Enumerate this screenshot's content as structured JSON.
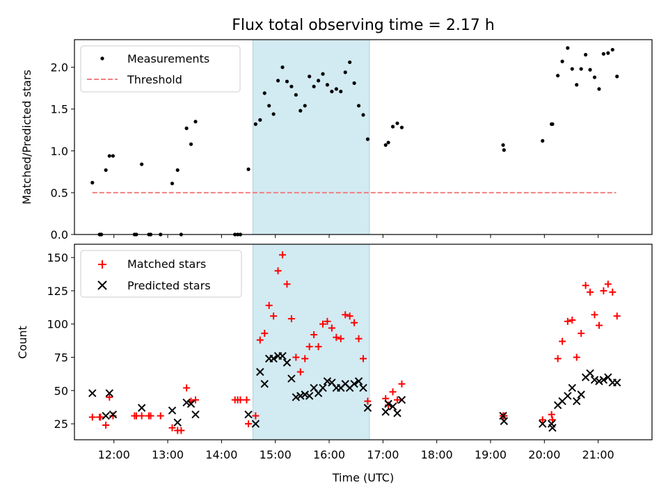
{
  "title": "Flux total observing time = 2.17 h",
  "colors": {
    "measurement": "#000000",
    "threshold": "#f08080",
    "matched": "#ff0000",
    "predicted": "#000000",
    "shade": "#add8e6"
  },
  "chart_data": [
    {
      "type": "scatter",
      "ylabel": "Matched/Predicted stars",
      "ylim": [
        0,
        2.33
      ],
      "xlim": [
        "11:16",
        "22:00"
      ],
      "yticks": [
        "0.0",
        "0.5",
        "1.0",
        "1.5",
        "2.0"
      ],
      "yticks_values": [
        0,
        0.5,
        1.0,
        1.5,
        2.0
      ],
      "shaded_interval": [
        "14:35",
        "16:45"
      ],
      "legend": {
        "position": "top-left",
        "entries": [
          "Measurements",
          "Threshold"
        ]
      },
      "threshold": {
        "name": "Threshold",
        "value": 0.5,
        "x": [
          "11:36",
          "21:20"
        ]
      },
      "series": [
        {
          "name": "Measurements",
          "points": [
            [
              "11:36",
              0.62
            ],
            [
              "11:44",
              0.0
            ],
            [
              "11:45",
              0.0
            ],
            [
              "11:46",
              0.0
            ],
            [
              "11:51",
              0.77
            ],
            [
              "11:55",
              0.94
            ],
            [
              "11:59",
              0.94
            ],
            [
              "12:23",
              0.0
            ],
            [
              "12:25",
              0.0
            ],
            [
              "12:31",
              0.84
            ],
            [
              "12:39",
              0.0
            ],
            [
              "12:41",
              0.0
            ],
            [
              "12:52",
              0.0
            ],
            [
              "13:05",
              0.61
            ],
            [
              "13:11",
              0.77
            ],
            [
              "13:15",
              0.0
            ],
            [
              "13:21",
              1.27
            ],
            [
              "13:26",
              1.08
            ],
            [
              "13:31",
              1.35
            ],
            [
              "14:15",
              0.0
            ],
            [
              "14:18",
              0.0
            ],
            [
              "14:21",
              0.0
            ],
            [
              "14:30",
              0.78
            ],
            [
              "14:38",
              1.32
            ],
            [
              "14:43",
              1.37
            ],
            [
              "14:48",
              1.69
            ],
            [
              "14:53",
              1.54
            ],
            [
              "14:58",
              1.44
            ],
            [
              "15:03",
              1.84
            ],
            [
              "15:08",
              2.0
            ],
            [
              "15:13",
              1.83
            ],
            [
              "15:18",
              1.77
            ],
            [
              "15:23",
              1.67
            ],
            [
              "15:28",
              1.48
            ],
            [
              "15:33",
              1.54
            ],
            [
              "15:38",
              1.89
            ],
            [
              "15:43",
              1.77
            ],
            [
              "15:48",
              1.84
            ],
            [
              "15:53",
              1.92
            ],
            [
              "15:58",
              1.79
            ],
            [
              "16:03",
              1.71
            ],
            [
              "16:08",
              1.74
            ],
            [
              "16:13",
              1.71
            ],
            [
              "16:18",
              1.94
            ],
            [
              "16:23",
              2.06
            ],
            [
              "16:28",
              1.81
            ],
            [
              "16:33",
              1.54
            ],
            [
              "16:38",
              1.43
            ],
            [
              "16:43",
              1.14
            ],
            [
              "17:03",
              1.07
            ],
            [
              "17:06",
              1.1
            ],
            [
              "17:11",
              1.29
            ],
            [
              "17:16",
              1.33
            ],
            [
              "17:21",
              1.28
            ],
            [
              "19:14",
              1.07
            ],
            [
              "19:15",
              1.01
            ],
            [
              "19:58",
              1.12
            ],
            [
              "20:08",
              1.32
            ],
            [
              "20:09",
              1.32
            ],
            [
              "20:15",
              1.9
            ],
            [
              "20:20",
              2.07
            ],
            [
              "20:26",
              2.23
            ],
            [
              "20:31",
              1.98
            ],
            [
              "20:36",
              1.79
            ],
            [
              "20:41",
              1.98
            ],
            [
              "20:46",
              2.15
            ],
            [
              "20:51",
              1.97
            ],
            [
              "20:56",
              1.88
            ],
            [
              "21:01",
              1.74
            ],
            [
              "21:06",
              2.16
            ],
            [
              "21:11",
              2.17
            ],
            [
              "21:16",
              2.21
            ],
            [
              "21:21",
              1.89
            ]
          ]
        }
      ]
    },
    {
      "type": "scatter",
      "xlabel": "Time (UTC)",
      "ylabel": "Count",
      "ylim": [
        13,
        160
      ],
      "xlim": [
        "11:16",
        "22:00"
      ],
      "xticks": [
        "12:00",
        "13:00",
        "14:00",
        "15:00",
        "16:00",
        "17:00",
        "18:00",
        "19:00",
        "20:00",
        "21:00"
      ],
      "yticks": [
        "25",
        "50",
        "75",
        "100",
        "125",
        "150"
      ],
      "yticks_values": [
        25,
        50,
        75,
        100,
        125,
        150
      ],
      "shaded_interval": [
        "14:35",
        "16:45"
      ],
      "legend": {
        "position": "top-left",
        "entries": [
          "Matched stars",
          "Predicted stars"
        ]
      },
      "series": [
        {
          "name": "Matched stars",
          "points": [
            [
              "11:36",
              30
            ],
            [
              "11:44",
              30
            ],
            [
              "11:45",
              30
            ],
            [
              "11:51",
              24
            ],
            [
              "11:55",
              45
            ],
            [
              "11:59",
              31
            ],
            [
              "12:23",
              31
            ],
            [
              "12:25",
              31
            ],
            [
              "12:31",
              31
            ],
            [
              "12:39",
              31
            ],
            [
              "12:41",
              31
            ],
            [
              "12:52",
              31
            ],
            [
              "13:05",
              22
            ],
            [
              "13:11",
              20
            ],
            [
              "13:15",
              20
            ],
            [
              "13:21",
              52
            ],
            [
              "13:26",
              42
            ],
            [
              "13:31",
              43
            ],
            [
              "14:15",
              43
            ],
            [
              "14:18",
              43
            ],
            [
              "14:21",
              43
            ],
            [
              "14:28",
              43
            ],
            [
              "14:30",
              25
            ],
            [
              "14:38",
              31
            ],
            [
              "14:43",
              88
            ],
            [
              "14:48",
              93
            ],
            [
              "14:53",
              114
            ],
            [
              "14:58",
              106
            ],
            [
              "15:03",
              140
            ],
            [
              "15:08",
              152
            ],
            [
              "15:13",
              130
            ],
            [
              "15:18",
              104
            ],
            [
              "15:23",
              75
            ],
            [
              "15:28",
              64
            ],
            [
              "15:33",
              74
            ],
            [
              "15:38",
              83
            ],
            [
              "15:43",
              92
            ],
            [
              "15:48",
              83
            ],
            [
              "15:53",
              100
            ],
            [
              "15:58",
              102
            ],
            [
              "16:03",
              97
            ],
            [
              "16:08",
              90
            ],
            [
              "16:13",
              89
            ],
            [
              "16:18",
              107
            ],
            [
              "16:23",
              106
            ],
            [
              "16:28",
              101
            ],
            [
              "16:33",
              89
            ],
            [
              "16:38",
              74
            ],
            [
              "16:43",
              42
            ],
            [
              "17:03",
              44
            ],
            [
              "17:06",
              39
            ],
            [
              "17:11",
              49
            ],
            [
              "17:16",
              43
            ],
            [
              "17:21",
              55
            ],
            [
              "19:14",
              31
            ],
            [
              "19:15",
              31
            ],
            [
              "19:58",
              28
            ],
            [
              "20:08",
              32
            ],
            [
              "20:09",
              28
            ],
            [
              "20:15",
              74
            ],
            [
              "20:20",
              87
            ],
            [
              "20:26",
              102
            ],
            [
              "20:31",
              103
            ],
            [
              "20:36",
              75
            ],
            [
              "20:41",
              93
            ],
            [
              "20:46",
              129
            ],
            [
              "20:51",
              124
            ],
            [
              "20:56",
              107
            ],
            [
              "21:01",
              99
            ],
            [
              "21:06",
              125
            ],
            [
              "21:11",
              130
            ],
            [
              "21:16",
              124
            ],
            [
              "21:21",
              106
            ]
          ]
        },
        {
          "name": "Predicted stars",
          "points": [
            [
              "11:36",
              48
            ],
            [
              "11:51",
              31
            ],
            [
              "11:55",
              48
            ],
            [
              "11:59",
              32
            ],
            [
              "12:31",
              37
            ],
            [
              "13:05",
              35
            ],
            [
              "13:11",
              26
            ],
            [
              "13:21",
              41
            ],
            [
              "13:26",
              40
            ],
            [
              "13:31",
              32
            ],
            [
              "14:30",
              32
            ],
            [
              "14:38",
              25
            ],
            [
              "14:43",
              64
            ],
            [
              "14:48",
              55
            ],
            [
              "14:53",
              74
            ],
            [
              "14:58",
              74
            ],
            [
              "15:03",
              76
            ],
            [
              "15:08",
              76
            ],
            [
              "15:13",
              71
            ],
            [
              "15:18",
              59
            ],
            [
              "15:23",
              45
            ],
            [
              "15:28",
              46
            ],
            [
              "15:33",
              47
            ],
            [
              "15:38",
              46
            ],
            [
              "15:43",
              52
            ],
            [
              "15:48",
              48
            ],
            [
              "15:53",
              52
            ],
            [
              "15:58",
              57
            ],
            [
              "16:03",
              56
            ],
            [
              "16:08",
              52
            ],
            [
              "16:13",
              52
            ],
            [
              "16:18",
              55
            ],
            [
              "16:23",
              52
            ],
            [
              "16:28",
              55
            ],
            [
              "16:33",
              57
            ],
            [
              "16:38",
              52
            ],
            [
              "16:43",
              37
            ],
            [
              "17:03",
              34
            ],
            [
              "17:06",
              40
            ],
            [
              "17:11",
              38
            ],
            [
              "17:16",
              33
            ],
            [
              "17:21",
              43
            ],
            [
              "19:14",
              31
            ],
            [
              "19:15",
              27
            ],
            [
              "19:58",
              25
            ],
            [
              "20:08",
              25
            ],
            [
              "20:09",
              22
            ],
            [
              "20:15",
              39
            ],
            [
              "20:20",
              42
            ],
            [
              "20:26",
              46
            ],
            [
              "20:31",
              52
            ],
            [
              "20:36",
              42
            ],
            [
              "20:41",
              47
            ],
            [
              "20:46",
              60
            ],
            [
              "20:51",
              63
            ],
            [
              "20:56",
              58
            ],
            [
              "21:01",
              57
            ],
            [
              "21:06",
              58
            ],
            [
              "21:11",
              60
            ],
            [
              "21:16",
              56
            ],
            [
              "21:21",
              56
            ]
          ]
        }
      ]
    }
  ]
}
